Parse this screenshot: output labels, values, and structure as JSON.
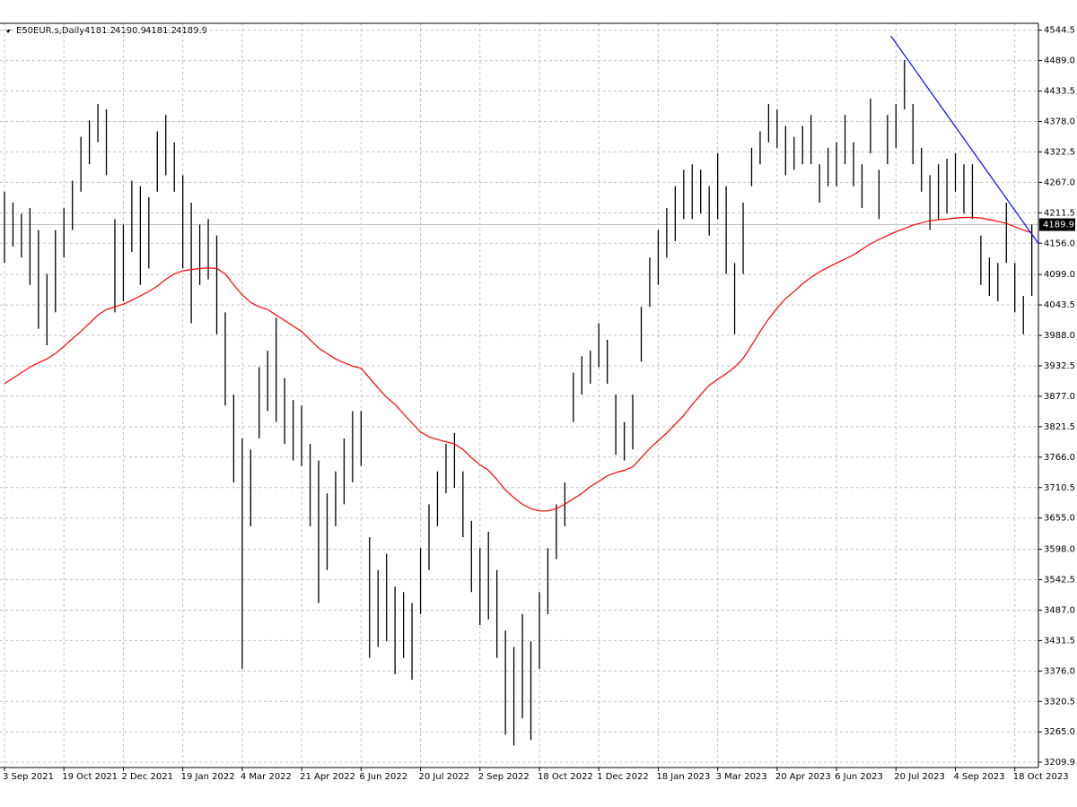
{
  "chart_data": {
    "type": "ohlc",
    "symbol": "E50EUR.s,Daily",
    "ohlc": [
      4181.2,
      4190.9,
      4181.2,
      4189.9
    ],
    "categories": [
      "3 Sep 2021",
      null,
      null,
      null,
      null,
      null,
      null,
      "19 Oct 2021",
      null,
      null,
      null,
      null,
      null,
      null,
      "2 Dec 2021",
      null,
      null,
      null,
      null,
      null,
      null,
      "19 Jan 2022",
      null,
      null,
      null,
      null,
      null,
      null,
      "4 Mar 2022",
      null,
      null,
      null,
      null,
      null,
      null,
      "21 Apr 2022",
      null,
      null,
      null,
      null,
      null,
      null,
      "6 Jun 2022",
      null,
      null,
      null,
      null,
      null,
      null,
      "20 Jul 2022",
      null,
      null,
      null,
      null,
      null,
      null,
      "2 Sep 2022",
      null,
      null,
      null,
      null,
      null,
      null,
      "18 Oct 2022",
      null,
      null,
      null,
      null,
      null,
      null,
      "1 Dec 2022",
      null,
      null,
      null,
      null,
      null,
      null,
      "18 Jan 2023",
      null,
      null,
      null,
      null,
      null,
      null,
      "3 Mar 2023",
      null,
      null,
      null,
      null,
      null,
      null,
      "20 Apr 2023",
      null,
      null,
      null,
      null,
      null,
      null,
      "6 Jun 2023",
      null,
      null,
      null,
      null,
      null,
      null,
      "20 Jul 2023",
      null,
      null,
      null,
      null,
      null,
      null,
      "4 Sep 2023",
      null,
      null,
      null,
      null,
      null,
      null,
      "18 Oct 2023",
      null,
      null
    ],
    "high": [
      4250,
      4230,
      4210,
      4220,
      4180,
      4100,
      4180,
      4220,
      4270,
      4350,
      4380,
      4410,
      4400,
      4200,
      4190,
      4270,
      4260,
      4240,
      4360,
      4390,
      4340,
      4280,
      4230,
      4190,
      4200,
      4170,
      4030,
      3880,
      3800,
      3780,
      3930,
      3960,
      4020,
      3910,
      3870,
      3860,
      3790,
      3760,
      3700,
      3740,
      3800,
      3850,
      3850,
      3620,
      3560,
      3590,
      3530,
      3520,
      3500,
      3600,
      3680,
      3740,
      3790,
      3810,
      3740,
      3650,
      3600,
      3630,
      3560,
      3450,
      3420,
      3480,
      3430,
      3520,
      3600,
      3680,
      3720,
      3920,
      3950,
      3960,
      4010,
      3980,
      3880,
      3830,
      3880,
      4040,
      4130,
      4180,
      4220,
      4260,
      4290,
      4300,
      4290,
      4260,
      4320,
      4260,
      4120,
      4230,
      4330,
      4360,
      4410,
      4400,
      4370,
      4350,
      4370,
      4390,
      4300,
      4330,
      4340,
      4390,
      4340,
      4300,
      4420,
      4290,
      4390,
      4410,
      4490,
      4410,
      4330,
      4280,
      4300,
      4310,
      4320,
      4300,
      4300,
      4170,
      4130,
      4120,
      4230,
      4120,
      4060,
      4190
    ],
    "low": [
      4120,
      4150,
      4130,
      4080,
      4000,
      3970,
      4030,
      4130,
      4180,
      4250,
      4300,
      4340,
      4280,
      4030,
      4050,
      4140,
      4080,
      4110,
      4250,
      4280,
      4250,
      4110,
      4010,
      4080,
      4090,
      3990,
      3860,
      3720,
      3380,
      3640,
      3800,
      3850,
      3830,
      3790,
      3760,
      3750,
      3640,
      3500,
      3560,
      3640,
      3680,
      3720,
      3750,
      3400,
      3420,
      3430,
      3370,
      3400,
      3360,
      3480,
      3560,
      3640,
      3700,
      3710,
      3620,
      3520,
      3460,
      3470,
      3400,
      3260,
      3240,
      3290,
      3250,
      3380,
      3480,
      3580,
      3640,
      3830,
      3880,
      3900,
      3930,
      3900,
      3770,
      3760,
      3780,
      3940,
      4040,
      4080,
      4130,
      4160,
      4200,
      4200,
      4210,
      4170,
      4200,
      4100,
      3990,
      4100,
      4260,
      4300,
      4340,
      4330,
      4280,
      4290,
      4300,
      4300,
      4230,
      4260,
      4260,
      4300,
      4260,
      4220,
      4320,
      4200,
      4300,
      4330,
      4400,
      4300,
      4250,
      4180,
      4200,
      4210,
      4250,
      4210,
      4200,
      4080,
      4060,
      4050,
      4120,
      4030,
      3990,
      4060
    ],
    "ma": {
      "color": "#ff0000",
      "values": [
        3900,
        3910,
        3920,
        3930,
        3938,
        3945,
        3955,
        3968,
        3982,
        3995,
        4010,
        4025,
        4035,
        4040,
        4045,
        4052,
        4060,
        4068,
        4078,
        4090,
        4100,
        4106,
        4108,
        4110,
        4111,
        4110,
        4100,
        4080,
        4062,
        4048,
        4040,
        4035,
        4025,
        4015,
        4005,
        3995,
        3980,
        3965,
        3955,
        3945,
        3938,
        3932,
        3928,
        3910,
        3892,
        3875,
        3862,
        3845,
        3828,
        3812,
        3803,
        3798,
        3794,
        3790,
        3780,
        3765,
        3752,
        3742,
        3725,
        3706,
        3692,
        3680,
        3672,
        3668,
        3668,
        3672,
        3680,
        3690,
        3700,
        3712,
        3722,
        3732,
        3738,
        3742,
        3748,
        3765,
        3782,
        3796,
        3810,
        3826,
        3842,
        3862,
        3880,
        3897,
        3908,
        3918,
        3930,
        3946,
        3970,
        3995,
        4018,
        4038,
        4055,
        4068,
        4082,
        4094,
        4104,
        4112,
        4120,
        4127,
        4135,
        4145,
        4155,
        4163,
        4170,
        4177,
        4183,
        4189,
        4193,
        4197,
        4199,
        4200,
        4202,
        4203,
        4203,
        4202,
        4199,
        4196,
        4192,
        4186,
        4180,
        4175
      ]
    },
    "trendline": {
      "color": "#0000ff",
      "x": [
        104.4,
        121.8
      ],
      "values": [
        4534,
        4155
      ]
    },
    "last": 4189.9,
    "color": "#000000",
    "grid": true,
    "ylim": [
      3200,
      4557
    ],
    "yticks": [
      3209.9,
      {
        "value": 3265,
        "label": "3265.0"
      },
      3320.5,
      {
        "value": 3376,
        "label": "3376.0"
      },
      3431.5,
      {
        "value": 3487,
        "label": "3487.0"
      },
      3542.5,
      {
        "value": 3598,
        "label": "3598.0"
      },
      {
        "value": 3655,
        "label": "3655.0"
      },
      3710.5,
      {
        "value": 3766,
        "label": "3766.0"
      },
      3821.5,
      {
        "value": 3877,
        "label": "3877.0"
      },
      3932.5,
      {
        "value": 3988,
        "label": "3988.0"
      },
      4043.5,
      {
        "value": 4099,
        "label": "4099.0"
      },
      {
        "value": 4156,
        "label": "4156.0"
      },
      4211.5,
      {
        "value": 4267,
        "label": "4267.0"
      },
      4322.5,
      {
        "value": 4378,
        "label": "4378.0"
      },
      4433.5,
      {
        "value": 4489,
        "label": "4489.0"
      },
      4544.5
    ]
  }
}
